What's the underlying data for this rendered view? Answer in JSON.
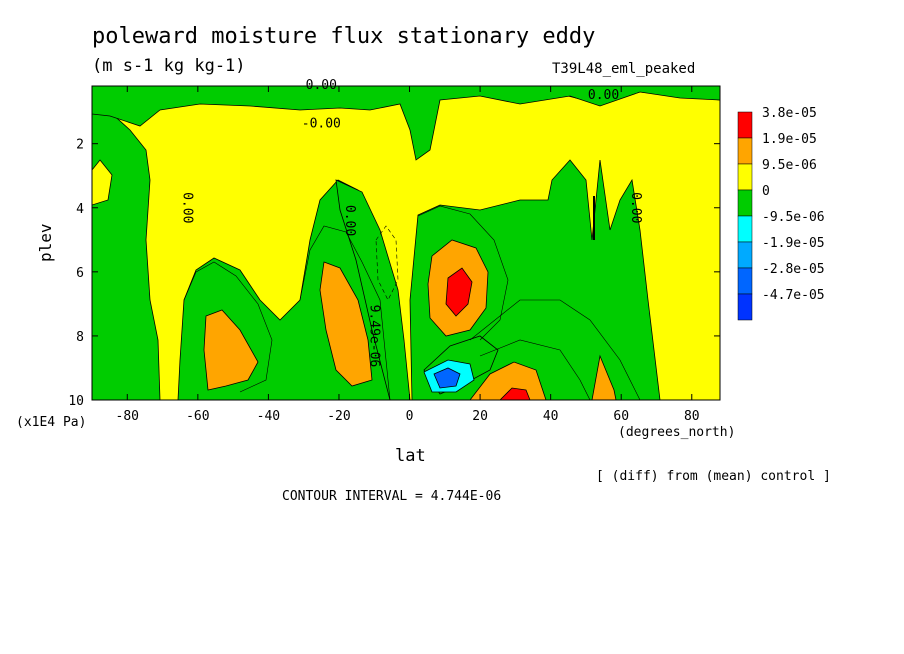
{
  "chart_data": {
    "type": "heatmap",
    "title": "poleward moisture flux stationary eddy",
    "units": "(m s-1 kg kg-1)",
    "run_label": "T39L48_eml_peaked",
    "xlabel": "lat",
    "x_unit": "(degrees_north)",
    "ylabel": "plev",
    "y_unit": "(x1E4 Pa)",
    "xlim": [
      -90,
      88
    ],
    "ylim": [
      0.2,
      10
    ],
    "y_inverted": true,
    "x_ticks": [
      -80,
      -60,
      -40,
      -20,
      0,
      20,
      40,
      60,
      80
    ],
    "y_ticks": [
      2,
      4,
      6,
      8,
      10
    ],
    "x_tick_labels": [
      "-80",
      "-60",
      "-40",
      "-20",
      "0",
      "20",
      "40",
      "60",
      "80"
    ],
    "y_tick_labels": [
      "2",
      "4",
      "6",
      "8",
      "10"
    ],
    "contour_interval": "CONTOUR INTERVAL = 4.744E-06",
    "diff_note": "[ (diff) from (mean) control ]",
    "contour_labels": [
      {
        "text": "0.00",
        "lat": -25,
        "plev": 0.3
      },
      {
        "text": "0.00",
        "lat": 55,
        "plev": 0.6
      },
      {
        "text": "-0.00",
        "lat": -25,
        "plev": 1.5
      },
      {
        "text": "0.00",
        "lat": -64,
        "plev": 4.0
      },
      {
        "text": "0.00",
        "lat": -18,
        "plev": 4.4
      },
      {
        "text": "0.00",
        "lat": 63,
        "plev": 4.0
      },
      {
        "text": "9.49e-06",
        "lat": -11,
        "plev": 8.0
      }
    ],
    "levels": [
      {
        "label": "3.8e-05",
        "color": "#ff0000"
      },
      {
        "label": "1.9e-05",
        "color": "#ffa500"
      },
      {
        "label": "9.5e-06",
        "color": "#ffff00"
      },
      {
        "label": "0",
        "color": "#00cc00"
      },
      {
        "label": "-9.5e-06",
        "color": "#00ffff"
      },
      {
        "label": "-1.9e-05",
        "color": "#00aaff"
      },
      {
        "label": "-2.8e-05",
        "color": "#0066ff"
      },
      {
        "label": "-4.7e-05",
        "color": "#0033ff"
      }
    ],
    "colors": {
      "green": "#00cc00",
      "yellow": "#ffff00",
      "orange": "#ffa500",
      "red": "#ff0000",
      "cyan": "#00ffff",
      "blue": "#0066ff"
    }
  }
}
